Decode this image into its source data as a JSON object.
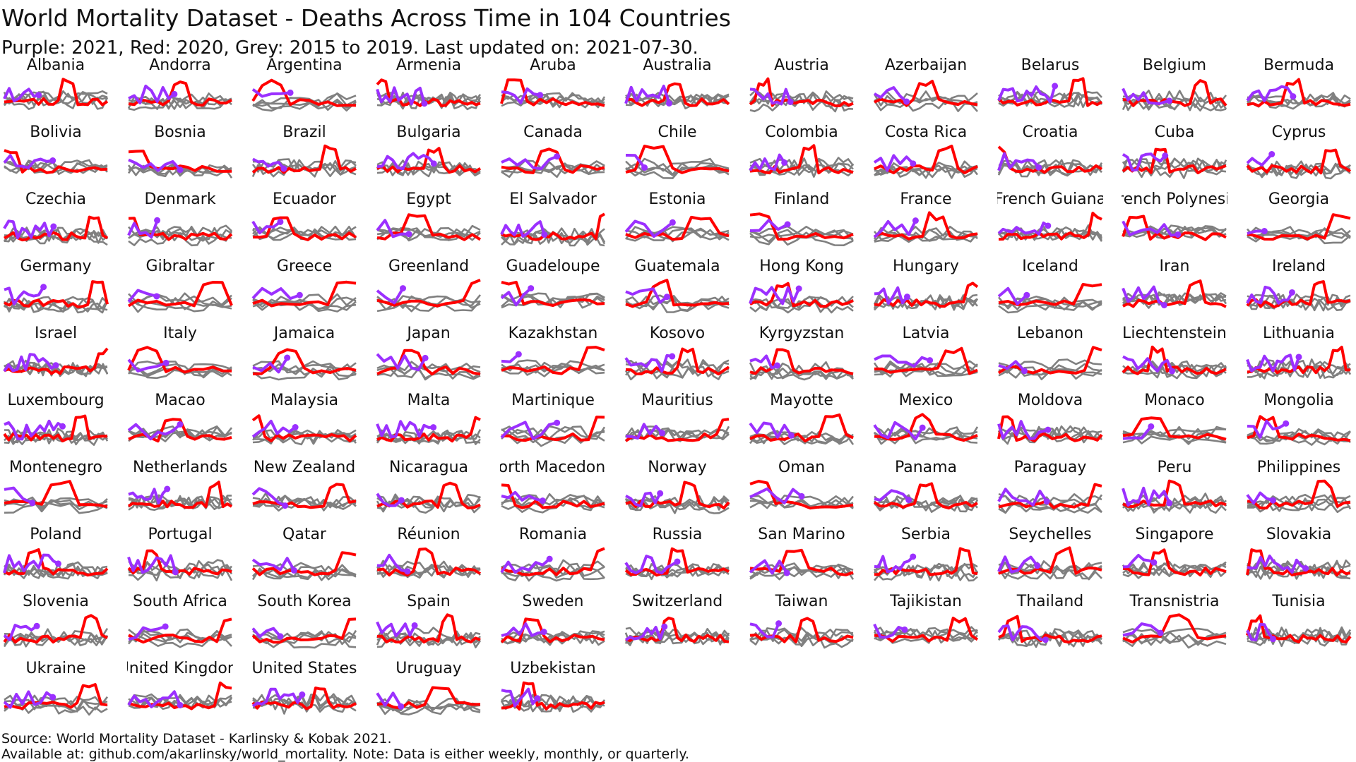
{
  "title": "World Mortality Dataset - Deaths Across Time in 104 Countries",
  "subtitle": "Purple: 2021, Red: 2020, Grey: 2015 to 2019. Last updated on: 2021-07-30.",
  "source_line": "Source: World Mortality Dataset - Karlinsky & Kobak 2021.",
  "availability_line": "Available at: github.com/akarlinsky/world_mortality. Note: Data is either weekly, monthly, or quarterly.",
  "colors": {
    "y2021": "#9b30ff",
    "y2020": "#ff0000",
    "baseline": "#808080"
  },
  "chart_data": {
    "type": "line",
    "layout": "small-multiples",
    "columns": 11,
    "legend": {
      "2021": "purple",
      "2020": "red",
      "2015-2019": "grey"
    },
    "axes": "hidden, each panel independently scaled",
    "countries": [
      "Albania",
      "Andorra",
      "Argentina",
      "Armenia",
      "Aruba",
      "Australia",
      "Austria",
      "Azerbaijan",
      "Belarus",
      "Belgium",
      "Bermuda",
      "Bolivia",
      "Bosnia",
      "Brazil",
      "Bulgaria",
      "Canada",
      "Chile",
      "Colombia",
      "Costa Rica",
      "Croatia",
      "Cuba",
      "Cyprus",
      "Czechia",
      "Denmark",
      "Ecuador",
      "Egypt",
      "El Salvador",
      "Estonia",
      "Finland",
      "France",
      "French Guiana",
      "French Polynesia",
      "Georgia",
      "Germany",
      "Gibraltar",
      "Greece",
      "Greenland",
      "Guadeloupe",
      "Guatemala",
      "Hong Kong",
      "Hungary",
      "Iceland",
      "Iran",
      "Ireland",
      "Israel",
      "Italy",
      "Jamaica",
      "Japan",
      "Kazakhstan",
      "Kosovo",
      "Kyrgyzstan",
      "Latvia",
      "Lebanon",
      "Liechtenstein",
      "Lithuania",
      "Luxembourg",
      "Macao",
      "Malaysia",
      "Malta",
      "Martinique",
      "Mauritius",
      "Mayotte",
      "Mexico",
      "Moldova",
      "Monaco",
      "Mongolia",
      "Montenegro",
      "Netherlands",
      "New Zealand",
      "Nicaragua",
      "North Macedonia",
      "Norway",
      "Oman",
      "Panama",
      "Paraguay",
      "Peru",
      "Philippines",
      "Poland",
      "Portugal",
      "Qatar",
      "Réunion",
      "Romania",
      "Russia",
      "San Marino",
      "Serbia",
      "Seychelles",
      "Singapore",
      "Slovakia",
      "Slovenia",
      "South Africa",
      "South Korea",
      "Spain",
      "Sweden",
      "Switzerland",
      "Taiwan",
      "Tajikistan",
      "Thailand",
      "Transnistria",
      "Tunisia",
      "Ukraine",
      "United Kingdom",
      "United States",
      "Uruguay",
      "Uzbekistan"
    ]
  }
}
